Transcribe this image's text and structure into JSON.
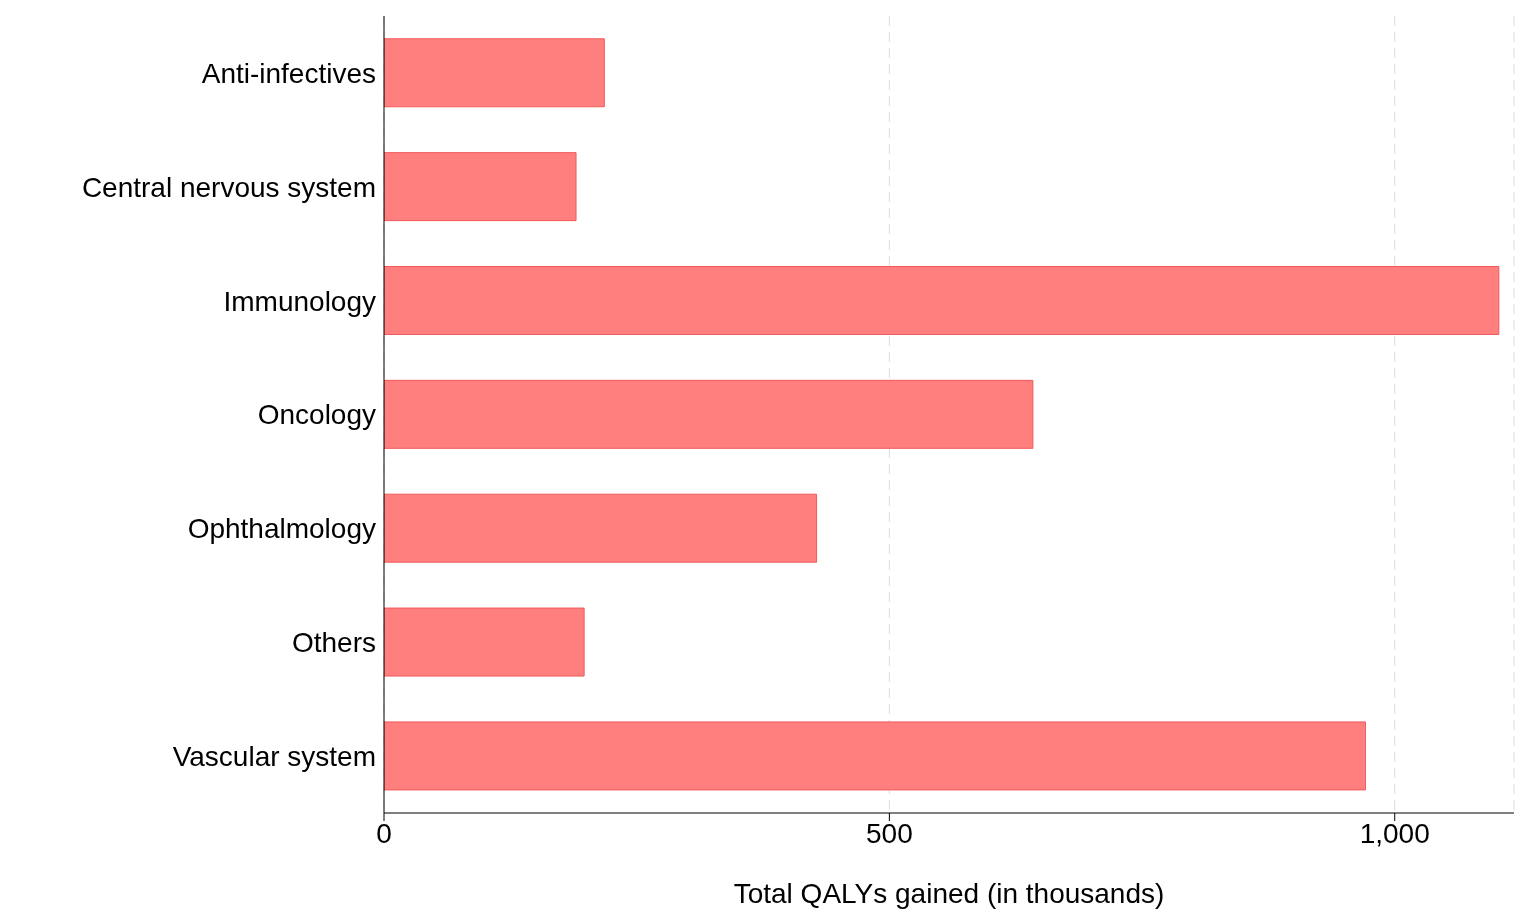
{
  "chart_data": {
    "type": "bar",
    "orientation": "horizontal",
    "xlabel": "Total QALYs gained (in thousands)",
    "categories": [
      "Anti-infectives",
      "Central nervous system",
      "Immunology",
      "Oncology",
      "Ophthalmology",
      "Others",
      "Vascular system"
    ],
    "values": [
      218,
      190,
      1103,
      642,
      428,
      198,
      971
    ],
    "color": "#ff7f7f",
    "xlim": [
      0,
      1118
    ],
    "xticks": [
      0,
      500,
      {
        "value": 1000,
        "label": "1,000"
      }
    ],
    "grid": "x"
  }
}
